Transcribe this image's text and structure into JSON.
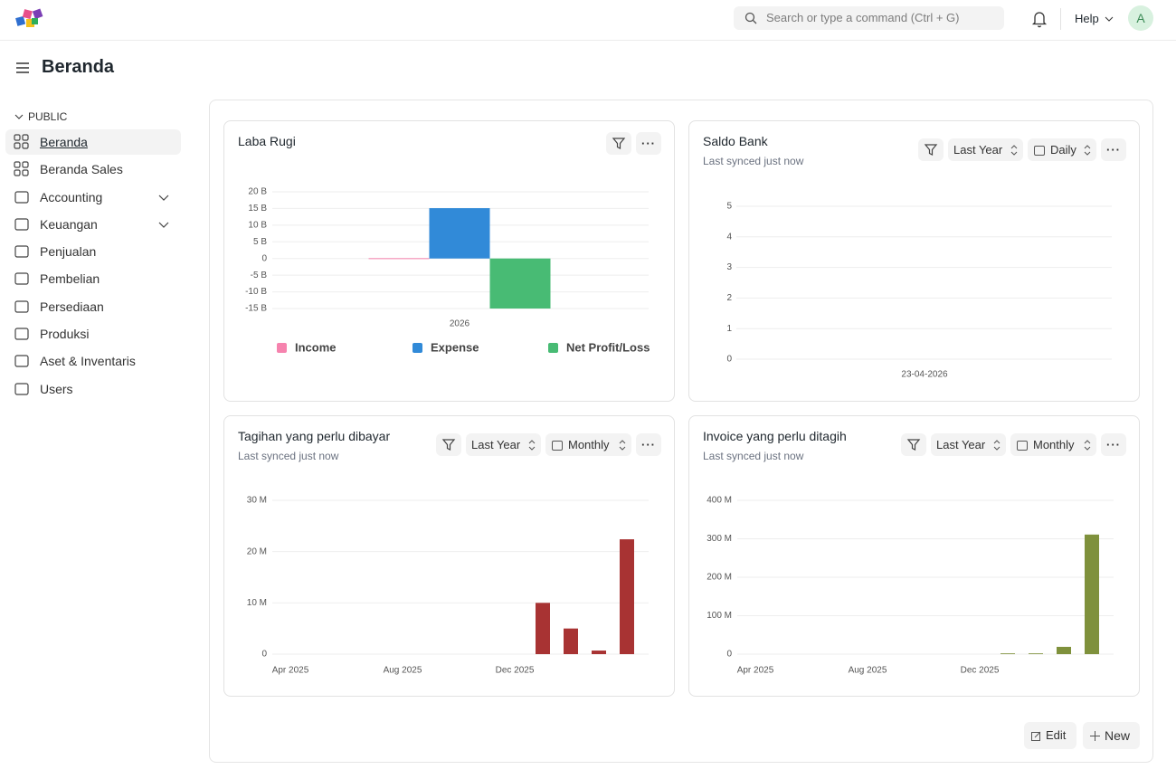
{
  "header": {
    "search_placeholder": "Search or type a command (Ctrl + G)",
    "help": "Help",
    "avatar": "A"
  },
  "page_title": "Beranda",
  "sidebar": {
    "section": "PUBLIC",
    "items": [
      "Beranda",
      "Beranda Sales",
      "Accounting",
      "Keuangan",
      "Penjualan",
      "Pembelian",
      "Persediaan",
      "Produksi",
      "Aset & Inventaris",
      "Users"
    ]
  },
  "chart_data": [
    {
      "type": "bar",
      "title": "Laba Rugi",
      "categories": [
        "2026"
      ],
      "series": [
        {
          "name": "Income",
          "color": "#f683ae",
          "values": [
            0.1
          ]
        },
        {
          "name": "Expense",
          "color": "#318ad8",
          "values": [
            15.1
          ]
        },
        {
          "name": "Net Profit/Loss",
          "color": "#48bb74",
          "values": [
            -15
          ]
        }
      ],
      "ylim": [
        -15,
        20
      ],
      "yticks": [
        {
          "value": -15,
          "label": "-15 B"
        },
        {
          "value": -10,
          "label": "-10 B"
        },
        {
          "value": -5,
          "label": "-5 B"
        },
        0,
        {
          "value": 5,
          "label": "5 B"
        },
        {
          "value": 10,
          "label": "10 B"
        },
        {
          "value": 15,
          "label": "15 B"
        },
        {
          "value": 20,
          "label": "20 B"
        }
      ],
      "grid": true,
      "legend": "bottom"
    },
    {
      "type": "line",
      "title": "Saldo Bank",
      "subtitle": "Last synced just now",
      "filters": [
        "Last Year",
        "Daily"
      ],
      "x": [
        "23-04-2026"
      ],
      "values": [
        0
      ],
      "ylim": [
        0,
        5
      ],
      "yticks": [
        0,
        1,
        2,
        3,
        4,
        5
      ],
      "grid": true
    },
    {
      "type": "bar",
      "title": "Tagihan yang perlu dibayar",
      "subtitle": "Last synced just now",
      "filters": [
        "Last Year",
        "Monthly"
      ],
      "categories": [
        "Apr 2025",
        null,
        null,
        null,
        "Aug 2025",
        null,
        null,
        null,
        "Dec 2025",
        null,
        null,
        null,
        null
      ],
      "values": [
        0,
        0,
        0,
        0,
        0,
        0,
        0,
        0,
        0,
        10,
        5,
        0.7,
        22.4
      ],
      "color": "#a83333",
      "ylim": [
        0,
        30
      ],
      "yticks": [
        0,
        {
          "value": 10,
          "label": "10 M"
        },
        {
          "value": 20,
          "label": "20 M"
        },
        {
          "value": 30,
          "label": "30 M"
        }
      ],
      "grid": true
    },
    {
      "type": "bar",
      "title": "Invoice yang perlu ditagih",
      "subtitle": "Last synced just now",
      "filters": [
        "Last Year",
        "Monthly"
      ],
      "categories": [
        "Apr 2025",
        null,
        null,
        null,
        "Aug 2025",
        null,
        null,
        null,
        "Dec 2025",
        null,
        null,
        null,
        null
      ],
      "values": [
        0,
        0,
        0,
        0,
        0,
        0,
        0,
        0,
        0,
        2,
        2,
        19,
        311
      ],
      "color": "#7f913c",
      "ylim": [
        0,
        400
      ],
      "yticks": [
        0,
        {
          "value": 100,
          "label": "100 M"
        },
        {
          "value": 200,
          "label": "200 M"
        },
        {
          "value": 300,
          "label": "300 M"
        },
        {
          "value": 400,
          "label": "400 M"
        }
      ],
      "grid": true
    }
  ],
  "buttons": {
    "edit": "Edit",
    "new": "New"
  }
}
